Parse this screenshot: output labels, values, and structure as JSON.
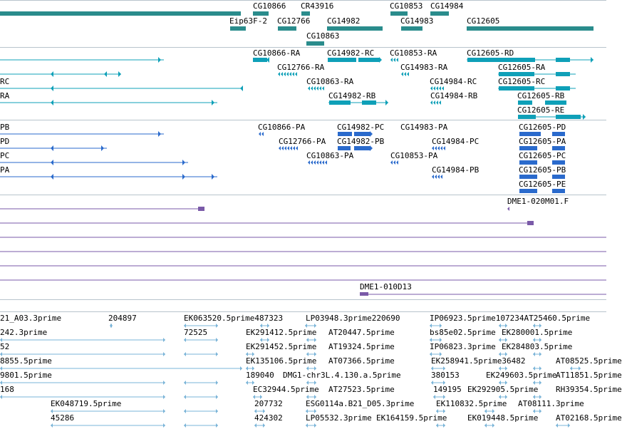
{
  "colors": {
    "gene": "#2a8c8c",
    "transcript": "#0fa0b8",
    "protein": "#2a6acc",
    "bac": "#7a5aa8",
    "est": "#7ab4d8",
    "separator": "#b8c4cc"
  },
  "gene_labels": [
    "CG10866",
    "CR43916",
    "CG10853",
    "CG14984",
    "Eip63F-2",
    "CG12766",
    "CG14982",
    "CG14983",
    "CG12605",
    "CG10863"
  ],
  "transcript_labels": [
    "CG10866-RA",
    "CG14982-RC",
    "CG10853-RA",
    "CG12605-RD",
    "CG12766-RA",
    "CG14983-RA",
    "CG12605-RA",
    "RC",
    "CG10863-RA",
    "CG14984-RC",
    "CG12605-RC",
    "RA",
    "CG14982-RB",
    "CG14984-RB",
    "CG12605-RB",
    "CG12605-RE"
  ],
  "protein_labels": [
    "PB",
    "CG10866-PA",
    "CG14982-PC",
    "CG14983-PA",
    "CG12605-PD",
    "PD",
    "CG12766-PA",
    "CG14982-PB",
    "CG14984-PC",
    "CG12605-PA",
    "PC",
    "CG10863-PA",
    "CG10853-PA",
    "CG12605-PC",
    "PA",
    "CG14984-PB",
    "CG12605-PB",
    "CG12605-PE"
  ],
  "bac_labels": [
    "DME1-020M01.F",
    "DME1-010D13"
  ],
  "est_labels": [
    "21_A03.3prime",
    "204897",
    "EK063520.5prime487323",
    "LP03948.3prime220690",
    "IP06923.5prime107234AT25460.5prime",
    "242.3prime",
    "72525",
    "EK291412.5prime",
    "AT20447.5prime",
    "bs85e02.5prime",
    "EK280001.5prime",
    "52",
    "EK291452.5prime",
    "AT19324.5prime",
    "IP06823.3prime",
    "EK284803.5prime",
    "8855.5prime",
    "EK135106.5prime",
    "AT07366.5prime",
    "EK258941.5prime36482",
    "AT08525.5prime",
    "9801.5prime",
    "189040",
    "DMG1-chr3L.4.130.a.5prime",
    "380153",
    "EK249603.5prime",
    "AT11851.5prime",
    "168",
    "EC32944.5prime",
    "AT27523.5prime",
    "149195",
    "EK292905.5prime",
    "RH39354.5prime",
    "EK048719.5prime",
    "207732",
    "ESG0114a.B21_D05.3prime",
    "EK110832.5prime",
    "AT08111.3prime",
    "45286",
    "424302",
    "LP05532.3prime",
    "EK164159.5prime",
    "EK019448.5prime",
    "AT02168.5prime"
  ]
}
